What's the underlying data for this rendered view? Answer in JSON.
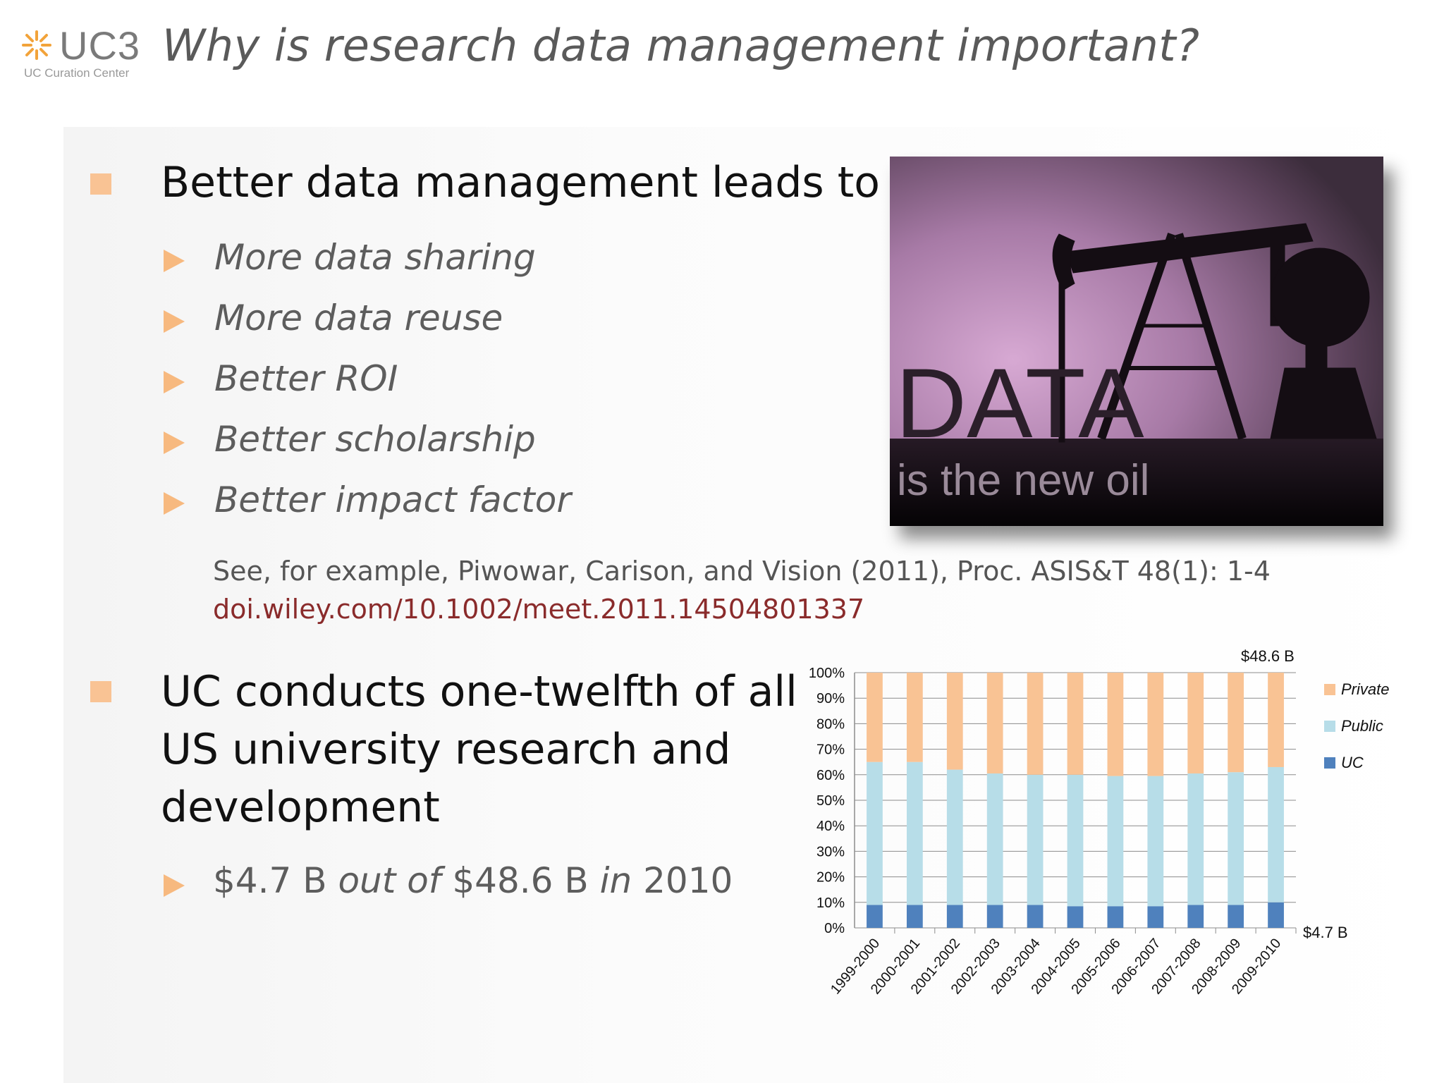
{
  "logo": {
    "mark": "UC3",
    "subtitle": "UC Curation Center"
  },
  "title": "Why is research data management important?",
  "bullet1": {
    "heading": "Better data management leads to …",
    "items": [
      "More data sharing",
      "More data reuse",
      "Better ROI",
      "Better scholarship",
      "Better impact factor"
    ]
  },
  "citation": {
    "text": "See, for example, Piwowar, Carison, and Vision (2011), Proc. ASIS&T 48(1): 1-4",
    "link": "doi.wiley.com/10.1002/meet.2011.14504801337"
  },
  "photo": {
    "big_word": "DATA",
    "caption": "is the new oil",
    "icon": "oil-pump-silhouette"
  },
  "bullet2": {
    "heading_lines": [
      "UC conducts one-twelfth of all",
      "US university research and",
      "development"
    ],
    "stat": {
      "a": "$4.7 B",
      "b": "out of",
      "c": "$48.6 B",
      "d": "in",
      "e": "2010"
    }
  },
  "colors": {
    "bullet": "#f9c394",
    "private": "#f9c394",
    "public": "#b7dde8",
    "uc": "#4f81bd",
    "link": "#8a2b2b"
  },
  "chart_data": {
    "type": "bar",
    "stacked": true,
    "categories": [
      "1999-2000",
      "2000-2001",
      "2001-2002",
      "2002-2003",
      "2003-2004",
      "2004-2005",
      "2005-2006",
      "2006-2007",
      "2007-2008",
      "2008-2009",
      "2009-2010"
    ],
    "series": [
      {
        "name": "UC",
        "values": [
          9,
          9,
          9,
          9,
          9,
          8.5,
          8.5,
          8.5,
          9,
          9,
          10
        ]
      },
      {
        "name": "Public",
        "values": [
          56,
          56,
          53,
          51.5,
          51,
          51.5,
          51,
          51,
          51.5,
          52,
          53
        ]
      },
      {
        "name": "Private",
        "values": [
          35,
          35,
          38,
          39.5,
          40,
          40,
          40.5,
          40.5,
          39.5,
          39,
          37
        ]
      }
    ],
    "ylim": [
      0,
      100
    ],
    "yticks": [
      "0%",
      "10%",
      "20%",
      "30%",
      "40%",
      "50%",
      "60%",
      "70%",
      "80%",
      "90%",
      "100%"
    ],
    "legend": [
      "Private",
      "Public",
      "UC"
    ],
    "legend_position": "right",
    "annotations": {
      "top": "$48.6 B",
      "bottom": "$4.7 B"
    }
  }
}
